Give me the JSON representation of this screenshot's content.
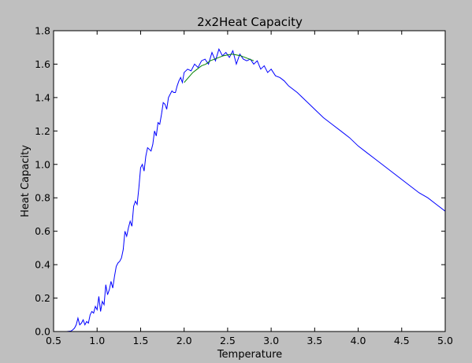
{
  "chart_data": {
    "type": "line",
    "title": "2x2Heat Capacity",
    "xlabel": "Temperature",
    "ylabel": "Heat Capacity",
    "xlim": [
      0.5,
      5.0
    ],
    "ylim": [
      0.0,
      1.8
    ],
    "xticks": [
      "0.5",
      "1.0",
      "1.5",
      "2.0",
      "2.5",
      "3.0",
      "3.5",
      "4.0",
      "4.5",
      "5.0"
    ],
    "yticks": [
      "0.0",
      "0.2",
      "0.4",
      "0.6",
      "0.8",
      "1.0",
      "1.2",
      "1.4",
      "1.6",
      "1.8"
    ],
    "grid": false,
    "legend": "none",
    "series": [
      {
        "color": "#0000ff",
        "x": [
          0.5,
          0.55,
          0.6,
          0.65,
          0.7,
          0.72,
          0.74,
          0.76,
          0.78,
          0.8,
          0.82,
          0.84,
          0.86,
          0.88,
          0.9,
          0.92,
          0.94,
          0.96,
          0.98,
          1.0,
          1.02,
          1.04,
          1.06,
          1.08,
          1.1,
          1.12,
          1.14,
          1.16,
          1.18,
          1.2,
          1.22,
          1.24,
          1.26,
          1.28,
          1.3,
          1.32,
          1.34,
          1.36,
          1.38,
          1.4,
          1.42,
          1.44,
          1.46,
          1.48,
          1.5,
          1.52,
          1.54,
          1.56,
          1.58,
          1.6,
          1.62,
          1.64,
          1.66,
          1.68,
          1.7,
          1.72,
          1.74,
          1.76,
          1.78,
          1.8,
          1.82,
          1.84,
          1.86,
          1.88,
          1.9,
          1.92,
          1.94,
          1.96,
          1.98,
          2.0,
          2.04,
          2.08,
          2.12,
          2.16,
          2.2,
          2.24,
          2.28,
          2.32,
          2.36,
          2.4,
          2.44,
          2.48,
          2.52,
          2.56,
          2.6,
          2.64,
          2.68,
          2.72,
          2.76,
          2.8,
          2.84,
          2.88,
          2.92,
          2.96,
          3.0,
          3.05,
          3.1,
          3.15,
          3.2,
          3.3,
          3.4,
          3.5,
          3.6,
          3.7,
          3.8,
          3.9,
          4.0,
          4.1,
          4.2,
          4.3,
          4.4,
          4.5,
          4.6,
          4.7,
          4.8,
          4.9,
          5.0
        ],
        "y": [
          0.0,
          0.0,
          0.0,
          0.0,
          0.003,
          0.01,
          0.02,
          0.04,
          0.08,
          0.04,
          0.05,
          0.07,
          0.04,
          0.06,
          0.05,
          0.1,
          0.12,
          0.11,
          0.15,
          0.13,
          0.21,
          0.12,
          0.18,
          0.16,
          0.28,
          0.22,
          0.25,
          0.3,
          0.26,
          0.33,
          0.39,
          0.41,
          0.42,
          0.44,
          0.49,
          0.6,
          0.57,
          0.62,
          0.66,
          0.63,
          0.75,
          0.78,
          0.76,
          0.86,
          0.98,
          1.0,
          0.96,
          1.05,
          1.1,
          1.09,
          1.08,
          1.12,
          1.2,
          1.17,
          1.25,
          1.24,
          1.3,
          1.37,
          1.36,
          1.33,
          1.4,
          1.42,
          1.44,
          1.43,
          1.43,
          1.47,
          1.5,
          1.52,
          1.49,
          1.55,
          1.57,
          1.56,
          1.6,
          1.58,
          1.62,
          1.63,
          1.6,
          1.67,
          1.62,
          1.69,
          1.65,
          1.67,
          1.64,
          1.68,
          1.6,
          1.66,
          1.63,
          1.62,
          1.63,
          1.6,
          1.62,
          1.57,
          1.59,
          1.55,
          1.57,
          1.53,
          1.52,
          1.5,
          1.47,
          1.43,
          1.38,
          1.33,
          1.28,
          1.24,
          1.2,
          1.16,
          1.11,
          1.07,
          1.03,
          0.99,
          0.95,
          0.91,
          0.87,
          0.83,
          0.8,
          0.76,
          0.72
        ]
      },
      {
        "color": "#008000",
        "x": [
          2.0,
          2.05,
          2.1,
          2.15,
          2.2,
          2.25,
          2.3,
          2.35,
          2.4,
          2.45,
          2.5,
          2.55,
          2.6,
          2.65,
          2.7,
          2.75,
          2.8
        ],
        "y": [
          1.49,
          1.52,
          1.55,
          1.57,
          1.59,
          1.6,
          1.62,
          1.63,
          1.64,
          1.65,
          1.655,
          1.66,
          1.655,
          1.65,
          1.64,
          1.63,
          1.62
        ]
      }
    ]
  }
}
